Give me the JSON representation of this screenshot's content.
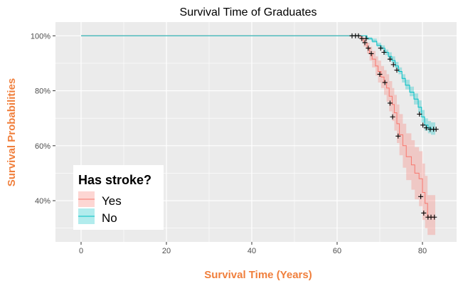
{
  "chart_data": {
    "type": "line",
    "subtype": "kaplan-meier survival curve",
    "title": "Survival Time of Graduates",
    "xlabel": "Survival Time (Years)",
    "ylabel": "Survival Probabilities",
    "xlim": [
      -6,
      88
    ],
    "ylim": [
      0.25,
      1.05
    ],
    "xticks": [
      0,
      20,
      40,
      60,
      80
    ],
    "yticks": [
      0.4,
      0.6,
      0.8,
      1.0
    ],
    "ytick_labels": [
      "40%",
      "60%",
      "80%",
      "100%"
    ],
    "axis_title_color": "#f07f3c",
    "panel_background": "#ebebeb",
    "grid": true,
    "legend": {
      "title": "Has stroke?",
      "position": "bottom-left"
    },
    "series": [
      {
        "name": "Yes",
        "color": "#f8766d",
        "band_color": "#f8766d",
        "steps": [
          [
            0,
            1.0
          ],
          [
            65.5,
            0.99
          ],
          [
            66.2,
            0.975
          ],
          [
            67.0,
            0.955
          ],
          [
            67.6,
            0.935
          ],
          [
            68.2,
            0.915
          ],
          [
            69.0,
            0.89
          ],
          [
            69.6,
            0.87
          ],
          [
            70.3,
            0.85
          ],
          [
            71.0,
            0.83
          ],
          [
            71.6,
            0.81
          ],
          [
            72.2,
            0.78
          ],
          [
            72.9,
            0.75
          ],
          [
            73.4,
            0.72
          ],
          [
            74.0,
            0.68
          ],
          [
            74.6,
            0.64
          ],
          [
            75.4,
            0.6
          ],
          [
            76.2,
            0.56
          ],
          [
            77.4,
            0.53
          ],
          [
            78.2,
            0.5
          ],
          [
            79.2,
            0.48
          ],
          [
            80.0,
            0.43
          ],
          [
            80.6,
            0.39
          ],
          [
            81.2,
            0.34
          ]
        ],
        "end_x": 83.0,
        "lower": [
          [
            0,
            1.0
          ],
          [
            65.5,
            0.98
          ],
          [
            66.2,
            0.96
          ],
          [
            67.0,
            0.935
          ],
          [
            67.6,
            0.91
          ],
          [
            68.2,
            0.885
          ],
          [
            69.0,
            0.855
          ],
          [
            69.6,
            0.83
          ],
          [
            70.3,
            0.81
          ],
          [
            71.0,
            0.785
          ],
          [
            71.6,
            0.76
          ],
          [
            72.2,
            0.725
          ],
          [
            72.9,
            0.69
          ],
          [
            73.4,
            0.655
          ],
          [
            74.0,
            0.61
          ],
          [
            74.6,
            0.565
          ],
          [
            75.4,
            0.52
          ],
          [
            76.2,
            0.475
          ],
          [
            77.4,
            0.44
          ],
          [
            78.2,
            0.405
          ],
          [
            79.2,
            0.38
          ],
          [
            80.0,
            0.33
          ],
          [
            80.6,
            0.3
          ],
          [
            81.2,
            0.275
          ]
        ],
        "upper": [
          [
            0,
            1.0
          ],
          [
            65.5,
            1.0
          ],
          [
            66.2,
            0.99
          ],
          [
            67.0,
            0.975
          ],
          [
            67.6,
            0.96
          ],
          [
            68.2,
            0.945
          ],
          [
            69.0,
            0.925
          ],
          [
            69.6,
            0.91
          ],
          [
            70.3,
            0.89
          ],
          [
            71.0,
            0.875
          ],
          [
            71.6,
            0.86
          ],
          [
            72.2,
            0.835
          ],
          [
            72.9,
            0.81
          ],
          [
            73.4,
            0.785
          ],
          [
            74.0,
            0.75
          ],
          [
            74.6,
            0.715
          ],
          [
            75.4,
            0.68
          ],
          [
            76.2,
            0.645
          ],
          [
            77.4,
            0.62
          ],
          [
            78.2,
            0.595
          ],
          [
            79.2,
            0.58
          ],
          [
            80.0,
            0.535
          ],
          [
            80.6,
            0.49
          ],
          [
            81.2,
            0.42
          ]
        ],
        "censor": [
          [
            63.5,
            1.0
          ],
          [
            64.3,
            1.0
          ],
          [
            65.0,
            1.0
          ],
          [
            65.8,
            0.99
          ],
          [
            66.5,
            0.975
          ],
          [
            67.3,
            0.955
          ],
          [
            68.0,
            0.935
          ],
          [
            70.0,
            0.86
          ],
          [
            71.2,
            0.83
          ],
          [
            72.4,
            0.755
          ],
          [
            73.0,
            0.705
          ],
          [
            74.3,
            0.635
          ],
          [
            79.6,
            0.415
          ],
          [
            80.3,
            0.355
          ],
          [
            81.3,
            0.34
          ],
          [
            82.0,
            0.34
          ],
          [
            82.8,
            0.34
          ]
        ]
      },
      {
        "name": "No",
        "color": "#00bfc4",
        "band_color": "#00bfc4",
        "steps": [
          [
            0,
            1.0
          ],
          [
            67.0,
            0.99
          ],
          [
            68.2,
            0.98
          ],
          [
            69.3,
            0.965
          ],
          [
            70.3,
            0.955
          ],
          [
            71.2,
            0.94
          ],
          [
            72.0,
            0.925
          ],
          [
            72.8,
            0.91
          ],
          [
            73.6,
            0.89
          ],
          [
            74.4,
            0.87
          ],
          [
            75.2,
            0.845
          ],
          [
            76.0,
            0.82
          ],
          [
            77.0,
            0.795
          ],
          [
            78.0,
            0.77
          ],
          [
            79.0,
            0.74
          ],
          [
            79.8,
            0.705
          ],
          [
            80.5,
            0.675
          ],
          [
            81.3,
            0.665
          ],
          [
            82.0,
            0.66
          ]
        ],
        "end_x": 83.0,
        "lower": [
          [
            0,
            1.0
          ],
          [
            67.0,
            0.985
          ],
          [
            68.2,
            0.975
          ],
          [
            69.3,
            0.96
          ],
          [
            70.3,
            0.95
          ],
          [
            71.2,
            0.93
          ],
          [
            72.0,
            0.915
          ],
          [
            72.8,
            0.9
          ],
          [
            73.6,
            0.88
          ],
          [
            74.4,
            0.86
          ],
          [
            75.2,
            0.83
          ],
          [
            76.0,
            0.805
          ],
          [
            77.0,
            0.78
          ],
          [
            78.0,
            0.75
          ],
          [
            79.0,
            0.72
          ],
          [
            79.8,
            0.685
          ],
          [
            80.5,
            0.655
          ],
          [
            81.3,
            0.645
          ],
          [
            82.0,
            0.64
          ]
        ],
        "upper": [
          [
            0,
            1.0
          ],
          [
            67.0,
            0.995
          ],
          [
            68.2,
            0.99
          ],
          [
            69.3,
            0.975
          ],
          [
            70.3,
            0.965
          ],
          [
            71.2,
            0.95
          ],
          [
            72.0,
            0.94
          ],
          [
            72.8,
            0.925
          ],
          [
            73.6,
            0.905
          ],
          [
            74.4,
            0.885
          ],
          [
            75.2,
            0.86
          ],
          [
            76.0,
            0.84
          ],
          [
            77.0,
            0.815
          ],
          [
            78.0,
            0.79
          ],
          [
            79.0,
            0.765
          ],
          [
            79.8,
            0.73
          ],
          [
            80.5,
            0.7
          ],
          [
            81.3,
            0.69
          ],
          [
            82.0,
            0.685
          ]
        ],
        "censor": [
          [
            66.8,
            0.99
          ],
          [
            70.2,
            0.955
          ],
          [
            71.0,
            0.94
          ],
          [
            72.4,
            0.915
          ],
          [
            73.2,
            0.895
          ],
          [
            74.0,
            0.875
          ],
          [
            79.3,
            0.715
          ],
          [
            80.1,
            0.675
          ],
          [
            80.9,
            0.665
          ],
          [
            81.8,
            0.66
          ],
          [
            82.6,
            0.66
          ],
          [
            83.2,
            0.66
          ]
        ]
      }
    ]
  }
}
